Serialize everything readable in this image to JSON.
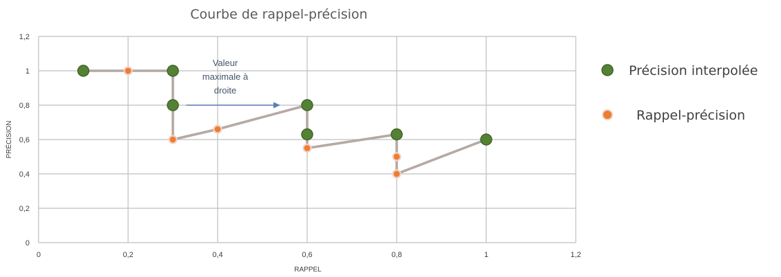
{
  "chart_data": {
    "type": "scatter",
    "title": "Courbe de rappel-précision",
    "xlabel": "RAPPEL",
    "ylabel": "PRÉCISION",
    "xlim": [
      0,
      1.2
    ],
    "ylim": [
      0,
      1.2
    ],
    "x_ticks": [
      "0",
      "0,2",
      "0,4",
      "0,6",
      "0,8",
      "1",
      "1,2"
    ],
    "y_ticks": [
      "0",
      "0,2",
      "0,4",
      "0,6",
      "0,8",
      "1",
      "1,2"
    ],
    "grid": true,
    "legend_position": "right",
    "annotation": {
      "lines": [
        "Valeur",
        "maximale à",
        "droite"
      ],
      "arrow_from": [
        0.33,
        0.8
      ],
      "arrow_to": [
        0.54,
        0.8
      ]
    },
    "series": [
      {
        "name": "Précision interpolée",
        "marker_color": "#548235",
        "line": false,
        "points": [
          {
            "x": 0.1,
            "y": 1.0
          },
          {
            "x": 0.3,
            "y": 1.0
          },
          {
            "x": 0.3,
            "y": 0.8
          },
          {
            "x": 0.6,
            "y": 0.8
          },
          {
            "x": 0.6,
            "y": 0.63
          },
          {
            "x": 0.8,
            "y": 0.63
          },
          {
            "x": 1.0,
            "y": 0.6
          }
        ]
      },
      {
        "name": "Rappel-précision",
        "marker_color": "#ed7d31",
        "line": true,
        "points": [
          {
            "x": 0.1,
            "y": 1.0
          },
          {
            "x": 0.2,
            "y": 1.0
          },
          {
            "x": 0.3,
            "y": 1.0
          },
          {
            "x": 0.3,
            "y": 0.6
          },
          {
            "x": 0.4,
            "y": 0.66
          },
          {
            "x": 0.6,
            "y": 0.8
          },
          {
            "x": 0.6,
            "y": 0.55
          },
          {
            "x": 0.8,
            "y": 0.63
          },
          {
            "x": 0.8,
            "y": 0.5
          },
          {
            "x": 0.8,
            "y": 0.4
          },
          {
            "x": 1.0,
            "y": 0.6
          }
        ]
      }
    ]
  }
}
